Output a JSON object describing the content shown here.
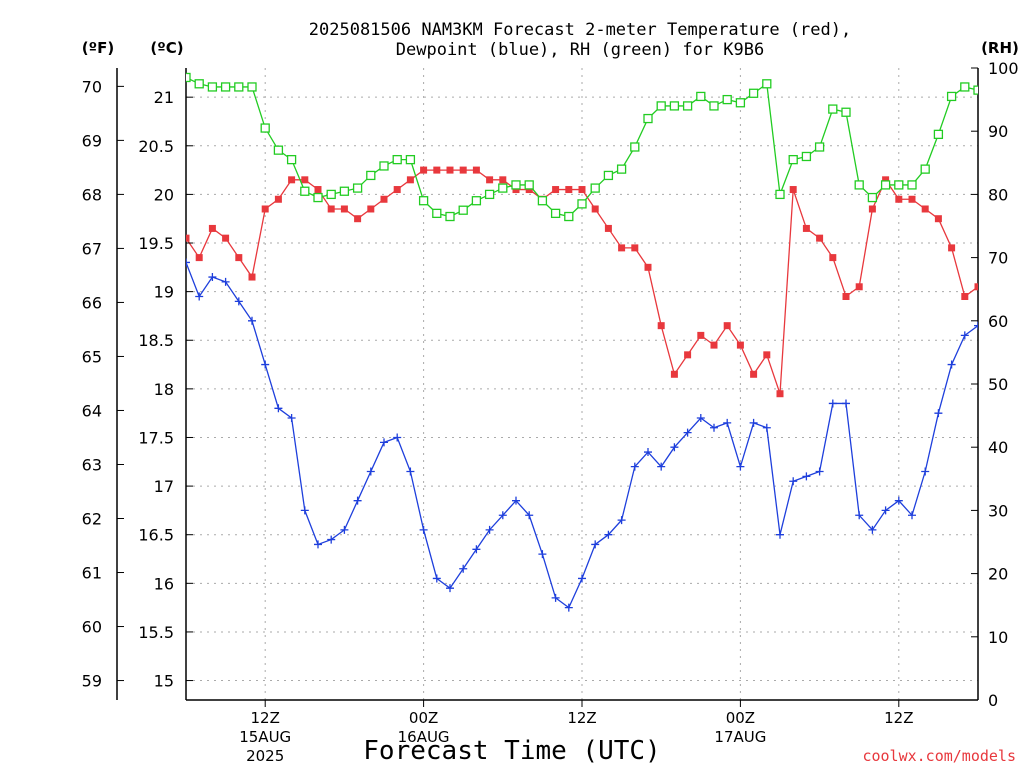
{
  "chart_data": {
    "type": "line",
    "title_line1": "2025081506 NAM3KM Forecast 2-meter Temperature (red),",
    "title_line2": "Dewpoint (blue), RH (green) for K9B6",
    "xlabel": "Forecast Time (UTC)",
    "left_outer_unit": "(ºF)",
    "left_inner_unit": "(ºC)",
    "right_unit": "(RH)",
    "credit": "coolwx.com/models",
    "colors": {
      "temperature": "#e8383d",
      "dewpoint": "#1e3fdc",
      "rh": "#22cc22",
      "grid": "#aaaaaa"
    },
    "x_range_hours": [
      0,
      60
    ],
    "celsius_range": [
      14.8,
      21.3
    ],
    "fahrenheit_range": [
      58.64,
      70.34
    ],
    "rh_range": [
      0,
      100
    ],
    "grid": true,
    "x_ticks": [
      {
        "hour": 6,
        "label": "12Z",
        "sub1": "15AUG",
        "sub2": "2025"
      },
      {
        "hour": 18,
        "label": "00Z",
        "sub1": "16AUG",
        "sub2": ""
      },
      {
        "hour": 30,
        "label": "12Z",
        "sub1": "",
        "sub2": ""
      },
      {
        "hour": 42,
        "label": "00Z",
        "sub1": "17AUG",
        "sub2": ""
      },
      {
        "hour": 54,
        "label": "12Z",
        "sub1": "",
        "sub2": ""
      }
    ],
    "celsius_ticks": [
      "15",
      "15.5",
      "16",
      "16.5",
      "17",
      "17.5",
      "18",
      "18.5",
      "19",
      "19.5",
      "20",
      "20.5",
      "21"
    ],
    "fahrenheit_ticks": [
      "59",
      "60",
      "61",
      "62",
      "63",
      "64",
      "65",
      "66",
      "67",
      "68",
      "69",
      "70"
    ],
    "rh_ticks": [
      "0",
      "10",
      "20",
      "30",
      "40",
      "50",
      "60",
      "70",
      "80",
      "90",
      "100"
    ],
    "series": [
      {
        "name": "Temperature",
        "color": "#e8383d",
        "marker": "filled-square",
        "points": [
          [
            0,
            19.55
          ],
          [
            1,
            19.35
          ],
          [
            2,
            19.65
          ],
          [
            3,
            19.55
          ],
          [
            4,
            19.35
          ],
          [
            5,
            19.15
          ],
          [
            6,
            19.85
          ],
          [
            7,
            19.95
          ],
          [
            8,
            20.15
          ],
          [
            9,
            20.15
          ],
          [
            10,
            20.05
          ],
          [
            11,
            19.85
          ],
          [
            12,
            19.85
          ],
          [
            13,
            19.75
          ],
          [
            14,
            19.85
          ],
          [
            15,
            19.95
          ],
          [
            16,
            20.05
          ],
          [
            17,
            20.15
          ],
          [
            18,
            20.25
          ],
          [
            19,
            20.25
          ],
          [
            20,
            20.25
          ],
          [
            21,
            20.25
          ],
          [
            22,
            20.25
          ],
          [
            23,
            20.15
          ],
          [
            24,
            20.15
          ],
          [
            25,
            20.05
          ],
          [
            26,
            20.05
          ],
          [
            27,
            19.95
          ],
          [
            28,
            20.05
          ],
          [
            29,
            20.05
          ],
          [
            30,
            20.05
          ],
          [
            31,
            19.85
          ],
          [
            32,
            19.65
          ],
          [
            33,
            19.45
          ],
          [
            34,
            19.45
          ],
          [
            35,
            19.25
          ],
          [
            36,
            18.65
          ],
          [
            37,
            18.15
          ],
          [
            38,
            18.35
          ],
          [
            39,
            18.55
          ],
          [
            40,
            18.45
          ],
          [
            41,
            18.65
          ],
          [
            42,
            18.45
          ],
          [
            43,
            18.15
          ],
          [
            44,
            18.35
          ],
          [
            45,
            17.95
          ],
          [
            46,
            20.05
          ],
          [
            47,
            19.65
          ],
          [
            48,
            19.55
          ],
          [
            49,
            19.35
          ],
          [
            50,
            18.95
          ],
          [
            51,
            19.05
          ],
          [
            52,
            19.85
          ],
          [
            53,
            20.15
          ],
          [
            54,
            19.95
          ],
          [
            55,
            19.95
          ],
          [
            56,
            19.85
          ],
          [
            57,
            19.75
          ],
          [
            58,
            19.45
          ],
          [
            59,
            18.95
          ],
          [
            60,
            19.05
          ],
          [
            60.5,
            19.25
          ]
        ]
      },
      {
        "name": "Dewpoint",
        "color": "#1e3fdc",
        "marker": "plus",
        "points": [
          [
            0,
            19.3
          ],
          [
            1,
            18.95
          ],
          [
            2,
            19.15
          ],
          [
            3,
            19.1
          ],
          [
            4,
            18.9
          ],
          [
            5,
            18.7
          ],
          [
            6,
            18.25
          ],
          [
            7,
            17.8
          ],
          [
            8,
            17.7
          ],
          [
            9,
            16.75
          ],
          [
            10,
            16.4
          ],
          [
            11,
            16.45
          ],
          [
            12,
            16.55
          ],
          [
            13,
            16.85
          ],
          [
            14,
            17.15
          ],
          [
            15,
            17.45
          ],
          [
            16,
            17.5
          ],
          [
            17,
            17.15
          ],
          [
            18,
            16.55
          ],
          [
            19,
            16.05
          ],
          [
            20,
            15.95
          ],
          [
            21,
            16.15
          ],
          [
            22,
            16.35
          ],
          [
            23,
            16.55
          ],
          [
            24,
            16.7
          ],
          [
            25,
            16.85
          ],
          [
            26,
            16.7
          ],
          [
            27,
            16.3
          ],
          [
            28,
            15.85
          ],
          [
            29,
            15.75
          ],
          [
            30,
            16.05
          ],
          [
            31,
            16.4
          ],
          [
            32,
            16.5
          ],
          [
            33,
            16.65
          ],
          [
            34,
            17.2
          ],
          [
            35,
            17.35
          ],
          [
            36,
            17.2
          ],
          [
            37,
            17.4
          ],
          [
            38,
            17.55
          ],
          [
            39,
            17.7
          ],
          [
            40,
            17.6
          ],
          [
            41,
            17.65
          ],
          [
            42,
            17.2
          ],
          [
            43,
            17.65
          ],
          [
            44,
            17.6
          ],
          [
            45,
            16.5
          ],
          [
            46,
            17.05
          ],
          [
            47,
            17.1
          ],
          [
            48,
            17.15
          ],
          [
            49,
            17.85
          ],
          [
            50,
            17.85
          ],
          [
            51,
            16.7
          ],
          [
            52,
            16.55
          ],
          [
            53,
            16.75
          ],
          [
            54,
            16.85
          ],
          [
            55,
            16.7
          ],
          [
            56,
            17.15
          ],
          [
            57,
            17.75
          ],
          [
            58,
            18.25
          ],
          [
            59,
            18.55
          ],
          [
            60,
            18.65
          ]
        ]
      },
      {
        "name": "RH",
        "color": "#22cc22",
        "marker": "open-square",
        "points": [
          [
            0,
            98.5
          ],
          [
            1,
            97.5
          ],
          [
            2,
            97
          ],
          [
            3,
            97
          ],
          [
            4,
            97
          ],
          [
            5,
            97
          ],
          [
            6,
            90.5
          ],
          [
            7,
            87
          ],
          [
            8,
            85.5
          ],
          [
            9,
            80.5
          ],
          [
            10,
            79.5
          ],
          [
            11,
            80
          ],
          [
            12,
            80.5
          ],
          [
            13,
            81
          ],
          [
            14,
            83
          ],
          [
            15,
            84.5
          ],
          [
            16,
            85.5
          ],
          [
            17,
            85.5
          ],
          [
            18,
            79
          ],
          [
            19,
            77
          ],
          [
            20,
            76.5
          ],
          [
            21,
            77.5
          ],
          [
            22,
            79
          ],
          [
            23,
            80
          ],
          [
            24,
            81
          ],
          [
            25,
            81.5
          ],
          [
            26,
            81.5
          ],
          [
            27,
            79
          ],
          [
            28,
            77
          ],
          [
            29,
            76.5
          ],
          [
            30,
            78.5
          ],
          [
            31,
            81
          ],
          [
            32,
            83
          ],
          [
            33,
            84
          ],
          [
            34,
            87.5
          ],
          [
            35,
            92
          ],
          [
            36,
            94
          ],
          [
            37,
            94
          ],
          [
            38,
            94
          ],
          [
            39,
            95.5
          ],
          [
            40,
            94
          ],
          [
            41,
            95
          ],
          [
            42,
            94.5
          ],
          [
            43,
            96
          ],
          [
            44,
            97.5
          ],
          [
            45,
            80
          ],
          [
            46,
            85.5
          ],
          [
            47,
            86
          ],
          [
            48,
            87.5
          ],
          [
            49,
            93.5
          ],
          [
            50,
            93
          ],
          [
            51,
            81.5
          ],
          [
            52,
            79.5
          ],
          [
            53,
            81.5
          ],
          [
            54,
            81.5
          ],
          [
            55,
            81.5
          ],
          [
            56,
            84
          ],
          [
            57,
            89.5
          ],
          [
            58,
            95.5
          ],
          [
            59,
            97
          ],
          [
            60,
            96.5
          ]
        ]
      }
    ]
  }
}
